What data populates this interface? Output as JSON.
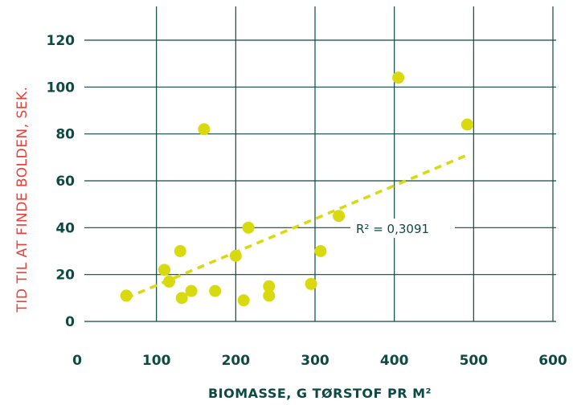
{
  "chart_data": {
    "type": "scatter",
    "xlabel": "BIOMASSE, G TØRSTOF PR M²",
    "ylabel": "TID TIL AT FINDE BOLDEN, SEK.",
    "xlim": [
      0,
      600
    ],
    "ylim": [
      0,
      120
    ],
    "x_ticks": [
      "0",
      "100",
      "200",
      "300",
      "400",
      "500",
      "600"
    ],
    "y_ticks": [
      "0",
      "20",
      "40",
      "60",
      "80",
      "100",
      "120"
    ],
    "grid": true,
    "points": [
      {
        "x": 62,
        "y": 11
      },
      {
        "x": 110,
        "y": 22
      },
      {
        "x": 116,
        "y": 17
      },
      {
        "x": 130,
        "y": 30
      },
      {
        "x": 132,
        "y": 10
      },
      {
        "x": 144,
        "y": 13
      },
      {
        "x": 160,
        "y": 82
      },
      {
        "x": 174,
        "y": 13
      },
      {
        "x": 200,
        "y": 28
      },
      {
        "x": 210,
        "y": 9
      },
      {
        "x": 216,
        "y": 40
      },
      {
        "x": 242,
        "y": 15
      },
      {
        "x": 242,
        "y": 11
      },
      {
        "x": 295,
        "y": 16
      },
      {
        "x": 307,
        "y": 30
      },
      {
        "x": 330,
        "y": 45
      },
      {
        "x": 405,
        "y": 104
      },
      {
        "x": 492,
        "y": 84
      }
    ],
    "trendline": {
      "x": [
        62,
        492
      ],
      "y": [
        10,
        71
      ]
    },
    "annotation": "R² =  0,3091",
    "colors": {
      "points": "#d9d90f",
      "trend": "#d9d90f",
      "grid": "#0d4a44",
      "text": "#0d4a44",
      "ylabel": "#e8413a"
    }
  }
}
